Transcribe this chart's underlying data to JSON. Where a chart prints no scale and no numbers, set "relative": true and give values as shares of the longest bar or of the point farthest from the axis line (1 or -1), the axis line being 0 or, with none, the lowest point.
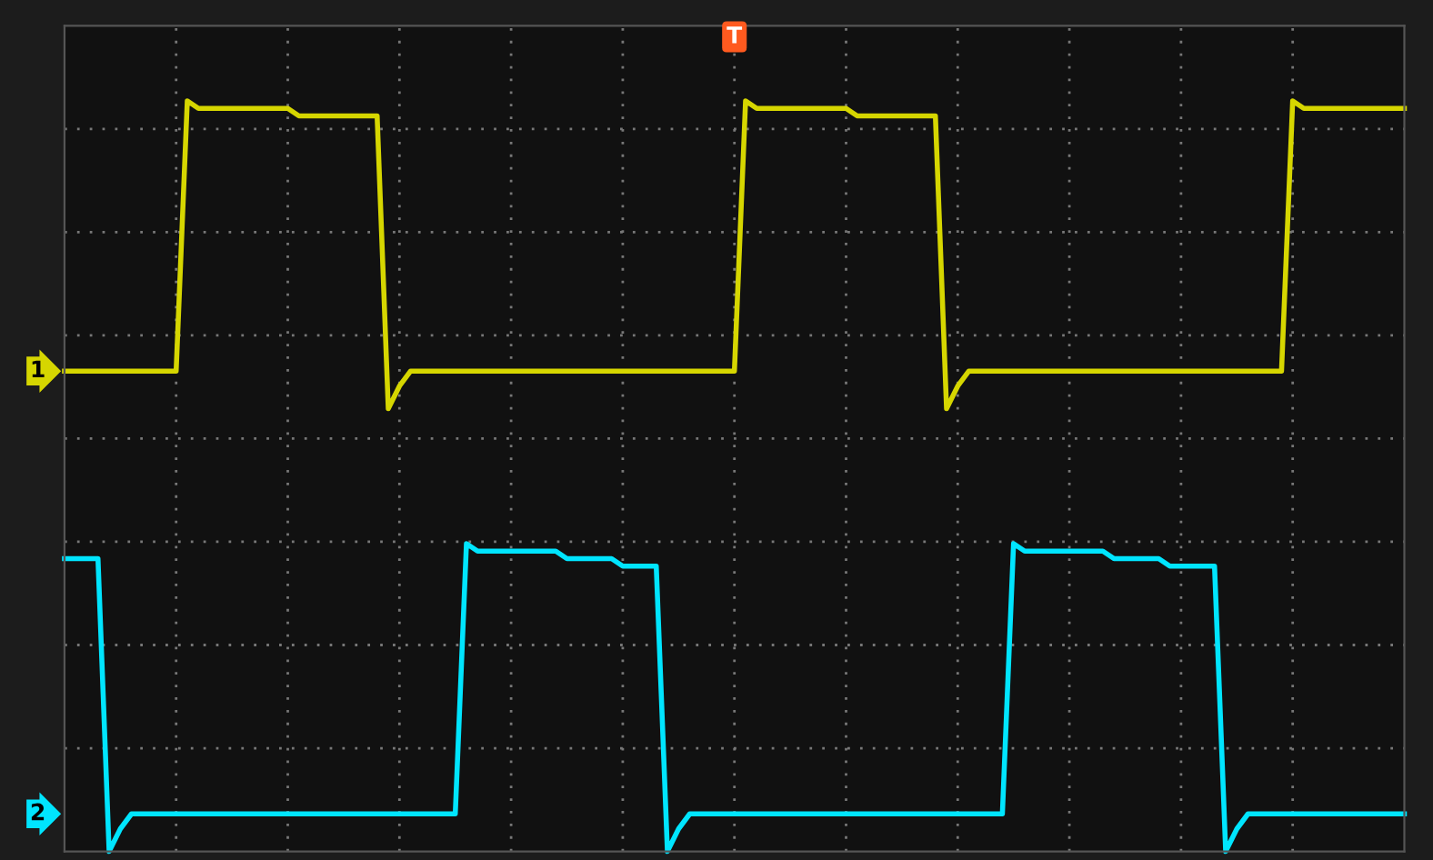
{
  "chart_data": {
    "type": "line",
    "relative": true,
    "grid": true,
    "legend": false,
    "marker": "none",
    "line_style": "solid",
    "annotations": [
      "T"
    ],
    "categories": [
      null,
      null,
      null,
      null,
      null,
      null,
      null,
      null,
      null,
      null,
      null,
      null,
      null,
      null,
      null,
      null,
      null,
      null,
      null,
      null,
      null,
      null,
      null,
      null,
      null,
      null,
      null,
      null,
      null,
      null,
      null,
      null,
      null,
      null,
      null,
      null,
      null,
      null,
      null,
      null,
      null,
      null,
      null,
      null,
      null,
      null,
      null,
      null,
      null,
      null,
      null,
      null,
      null,
      null,
      null,
      null,
      null,
      null,
      null,
      null,
      null,
      null,
      null,
      null,
      null,
      null,
      null,
      null,
      null,
      null,
      null,
      null,
      null,
      null,
      null,
      null,
      null,
      null,
      null,
      null,
      null,
      null,
      null,
      null,
      null,
      null,
      null,
      null,
      null,
      null,
      null,
      null,
      null,
      null,
      null,
      null,
      null,
      null,
      null,
      null,
      null,
      null,
      null,
      null,
      null,
      null,
      null,
      null,
      null,
      null,
      null,
      null,
      null,
      null,
      null,
      null,
      null,
      null,
      null,
      null,
      null
    ],
    "series": [
      {
        "name": "1",
        "color": "#d6d600",
        "values": [
          0.64,
          0.64,
          0.64,
          0.64,
          0.64,
          0.64,
          0.64,
          0.64,
          0.64,
          0.64,
          0.64,
          1.0,
          0.99,
          0.99,
          0.99,
          0.99,
          0.99,
          0.99,
          0.99,
          0.99,
          0.99,
          0.98,
          0.98,
          0.98,
          0.98,
          0.98,
          0.98,
          0.98,
          0.98,
          0.59,
          0.62,
          0.64,
          0.64,
          0.64,
          0.64,
          0.64,
          0.64,
          0.64,
          0.64,
          0.64,
          0.64,
          0.64,
          0.64,
          0.64,
          0.64,
          0.64,
          0.64,
          0.64,
          0.64,
          0.64,
          0.64,
          0.64,
          0.64,
          0.64,
          0.64,
          0.64,
          0.64,
          0.64,
          0.64,
          0.64,
          0.64,
          1.0,
          0.99,
          0.99,
          0.99,
          0.99,
          0.99,
          0.99,
          0.99,
          0.99,
          0.99,
          0.98,
          0.98,
          0.98,
          0.98,
          0.98,
          0.98,
          0.98,
          0.98,
          0.59,
          0.62,
          0.64,
          0.64,
          0.64,
          0.64,
          0.64,
          0.64,
          0.64,
          0.64,
          0.64,
          0.64,
          0.64,
          0.64,
          0.64,
          0.64,
          0.64,
          0.64,
          0.64,
          0.64,
          0.64,
          0.64,
          0.64,
          0.64,
          0.64,
          0.64,
          0.64,
          0.64,
          0.64,
          0.64,
          0.64,
          1.0,
          0.99,
          0.99,
          0.99,
          0.99,
          0.99,
          0.99,
          0.99,
          0.99,
          0.99,
          0.99
        ]
      },
      {
        "name": "2",
        "color": "#00e5ff",
        "values": [
          0.39,
          0.39,
          0.39,
          0.39,
          0.0,
          0.03,
          0.05,
          0.05,
          0.05,
          0.05,
          0.05,
          0.05,
          0.05,
          0.05,
          0.05,
          0.05,
          0.05,
          0.05,
          0.05,
          0.05,
          0.05,
          0.05,
          0.05,
          0.05,
          0.05,
          0.05,
          0.05,
          0.05,
          0.05,
          0.05,
          0.05,
          0.05,
          0.05,
          0.05,
          0.05,
          0.05,
          0.41,
          0.4,
          0.4,
          0.4,
          0.4,
          0.4,
          0.4,
          0.4,
          0.4,
          0.39,
          0.39,
          0.39,
          0.39,
          0.39,
          0.38,
          0.38,
          0.38,
          0.38,
          0.0,
          0.03,
          0.05,
          0.05,
          0.05,
          0.05,
          0.05,
          0.05,
          0.05,
          0.05,
          0.05,
          0.05,
          0.05,
          0.05,
          0.05,
          0.05,
          0.05,
          0.05,
          0.05,
          0.05,
          0.05,
          0.05,
          0.05,
          0.05,
          0.05,
          0.05,
          0.05,
          0.05,
          0.05,
          0.05,
          0.05,
          0.41,
          0.4,
          0.4,
          0.4,
          0.4,
          0.4,
          0.4,
          0.4,
          0.4,
          0.39,
          0.39,
          0.39,
          0.39,
          0.39,
          0.38,
          0.38,
          0.38,
          0.38,
          0.38,
          0.0,
          0.03,
          0.05,
          0.05,
          0.05,
          0.05,
          0.05,
          0.05,
          0.05,
          0.05,
          0.05,
          0.05,
          0.05,
          0.05,
          0.05,
          0.05,
          0.05
        ]
      }
    ]
  }
}
